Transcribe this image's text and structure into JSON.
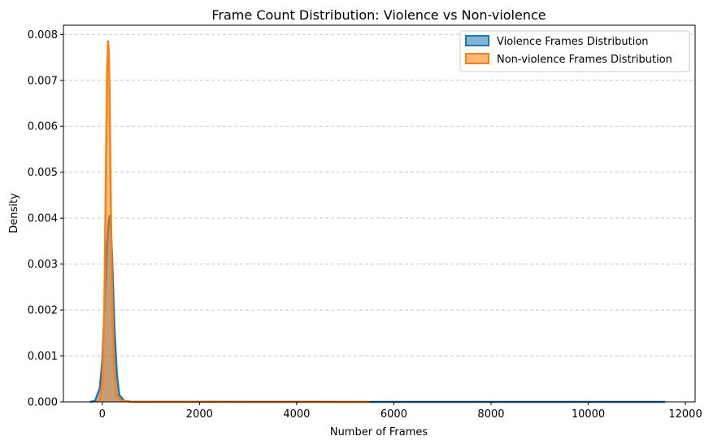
{
  "chart_data": {
    "type": "area",
    "title": "Frame Count Distribution: Violence vs Non-violence",
    "xlabel": "Number of Frames",
    "ylabel": "Density",
    "xlim": [
      -800,
      12200
    ],
    "ylim": [
      0,
      0.0082
    ],
    "xticks": [
      0,
      2000,
      4000,
      6000,
      8000,
      10000,
      12000
    ],
    "xtick_labels": [
      "0",
      "2000",
      "4000",
      "6000",
      "8000",
      "10000",
      "12000"
    ],
    "yticks": [
      0,
      0.001,
      0.002,
      0.003,
      0.004,
      0.005,
      0.006,
      0.007,
      0.008
    ],
    "ytick_labels": [
      "0.000",
      "0.001",
      "0.002",
      "0.003",
      "0.004",
      "0.005",
      "0.006",
      "0.007",
      "0.008"
    ],
    "grid": "y dashed",
    "legend_position": "top-right",
    "series": [
      {
        "name": "Violence Frames Distribution",
        "color": "#1f77b4",
        "x": [
          -250,
          -150,
          -50,
          0,
          50,
          100,
          130,
          150,
          170,
          200,
          250,
          300,
          350,
          450,
          600,
          1000,
          3000,
          6000,
          8000,
          10000,
          11500,
          11580
        ],
        "density": [
          0,
          2e-05,
          0.0003,
          0.0009,
          0.0021,
          0.0034,
          0.00395,
          0.00405,
          0.0039,
          0.0032,
          0.0016,
          0.0006,
          0.00015,
          2e-05,
          5e-06,
          2e-06,
          1e-06,
          1e-06,
          1e-06,
          1e-06,
          5e-07,
          0
        ]
      },
      {
        "name": "Non-violence Frames Distribution",
        "color": "#ff7f0e",
        "x": [
          -120,
          -50,
          0,
          40,
          80,
          100,
          120,
          135,
          150,
          170,
          200,
          240,
          300,
          400,
          600,
          1500,
          3000,
          4000,
          5000,
          5500
        ],
        "density": [
          0,
          5e-05,
          0.0004,
          0.0019,
          0.0055,
          0.0072,
          0.00785,
          0.0076,
          0.0068,
          0.0048,
          0.0024,
          0.0007,
          0.00012,
          2e-05,
          3e-06,
          2e-06,
          2e-06,
          2e-06,
          1e-06,
          0
        ]
      }
    ]
  }
}
